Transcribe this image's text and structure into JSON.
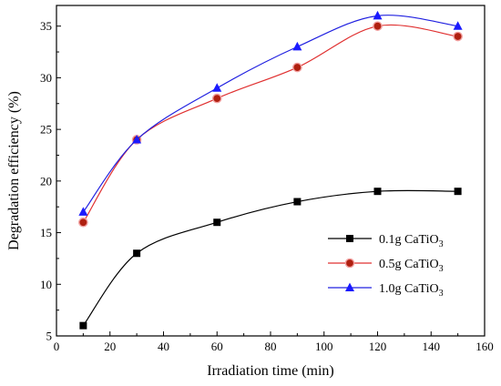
{
  "chart_data": {
    "type": "line",
    "xlabel": "Irradiation time (min)",
    "ylabel": "Degradation efficiency (%)",
    "xlim": [
      0,
      160
    ],
    "ylim": [
      5,
      37
    ],
    "x_ticks": [
      "0",
      "20",
      "40",
      "60",
      "80",
      "100",
      "120",
      "140",
      "160"
    ],
    "y_ticks": [
      "5",
      "10",
      "15",
      "20",
      "25",
      "30",
      "35"
    ],
    "grid": false,
    "legend_position": "center-right",
    "x": [
      10,
      30,
      60,
      90,
      120,
      150
    ],
    "series": [
      {
        "name_prefix": "0.1g CaTiO",
        "name_subscript": "3",
        "values": [
          6,
          13,
          16,
          18,
          19,
          19
        ],
        "color": "#000000",
        "marker": "square",
        "marker_fill": "#000000"
      },
      {
        "name_prefix": "0.5g CaTiO",
        "name_subscript": "3",
        "values": [
          16,
          24,
          28,
          31,
          35,
          34
        ],
        "color": "#e03030",
        "marker": "circle",
        "marker_fill": "#b02010"
      },
      {
        "name_prefix": "1.0g CaTiO",
        "name_subscript": "3",
        "values": [
          17,
          24,
          29,
          33,
          36,
          35
        ],
        "color": "#2020e0",
        "marker": "triangle",
        "marker_fill": "#1a1aff"
      }
    ]
  }
}
